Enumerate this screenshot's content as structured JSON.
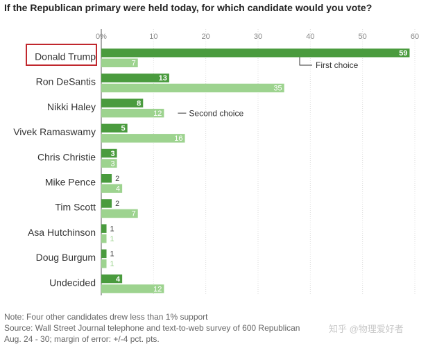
{
  "chart_data": {
    "type": "bar",
    "title": "If the Republican primary were held today, for which candidate would you vote?",
    "categories": [
      "Donald Trump",
      "Ron DeSantis",
      "Nikki Haley",
      "Vivek Ramaswamy",
      "Chris Christie",
      "Mike Pence",
      "Tim Scott",
      "Asa Hutchinson",
      "Doug Burgum",
      "Undecided"
    ],
    "series": [
      {
        "name": "First choice",
        "color": "#4a9b3e",
        "values": [
          59,
          13,
          8,
          5,
          3,
          2,
          2,
          1,
          1,
          4
        ]
      },
      {
        "name": "Second choice",
        "color": "#9dd38f",
        "values": [
          7,
          35,
          12,
          16,
          3,
          4,
          7,
          1,
          1,
          12
        ]
      }
    ],
    "xticks": [
      "0%",
      "10",
      "20",
      "30",
      "40",
      "50",
      "60"
    ],
    "xlim": [
      0,
      60
    ],
    "grid": true,
    "highlighted_category": "Donald Trump",
    "highlight_color": "#c0272d"
  },
  "footnotes": {
    "note": "Note: Four other candidates drew less than 1% support",
    "source": "Source: Wall Street Journal telephone and text-to-web survey of 600 Republican",
    "dates": "Aug. 24 - 30; margin of error: +/-4 pct. pts."
  },
  "watermark": "知乎 @物理爱好者"
}
